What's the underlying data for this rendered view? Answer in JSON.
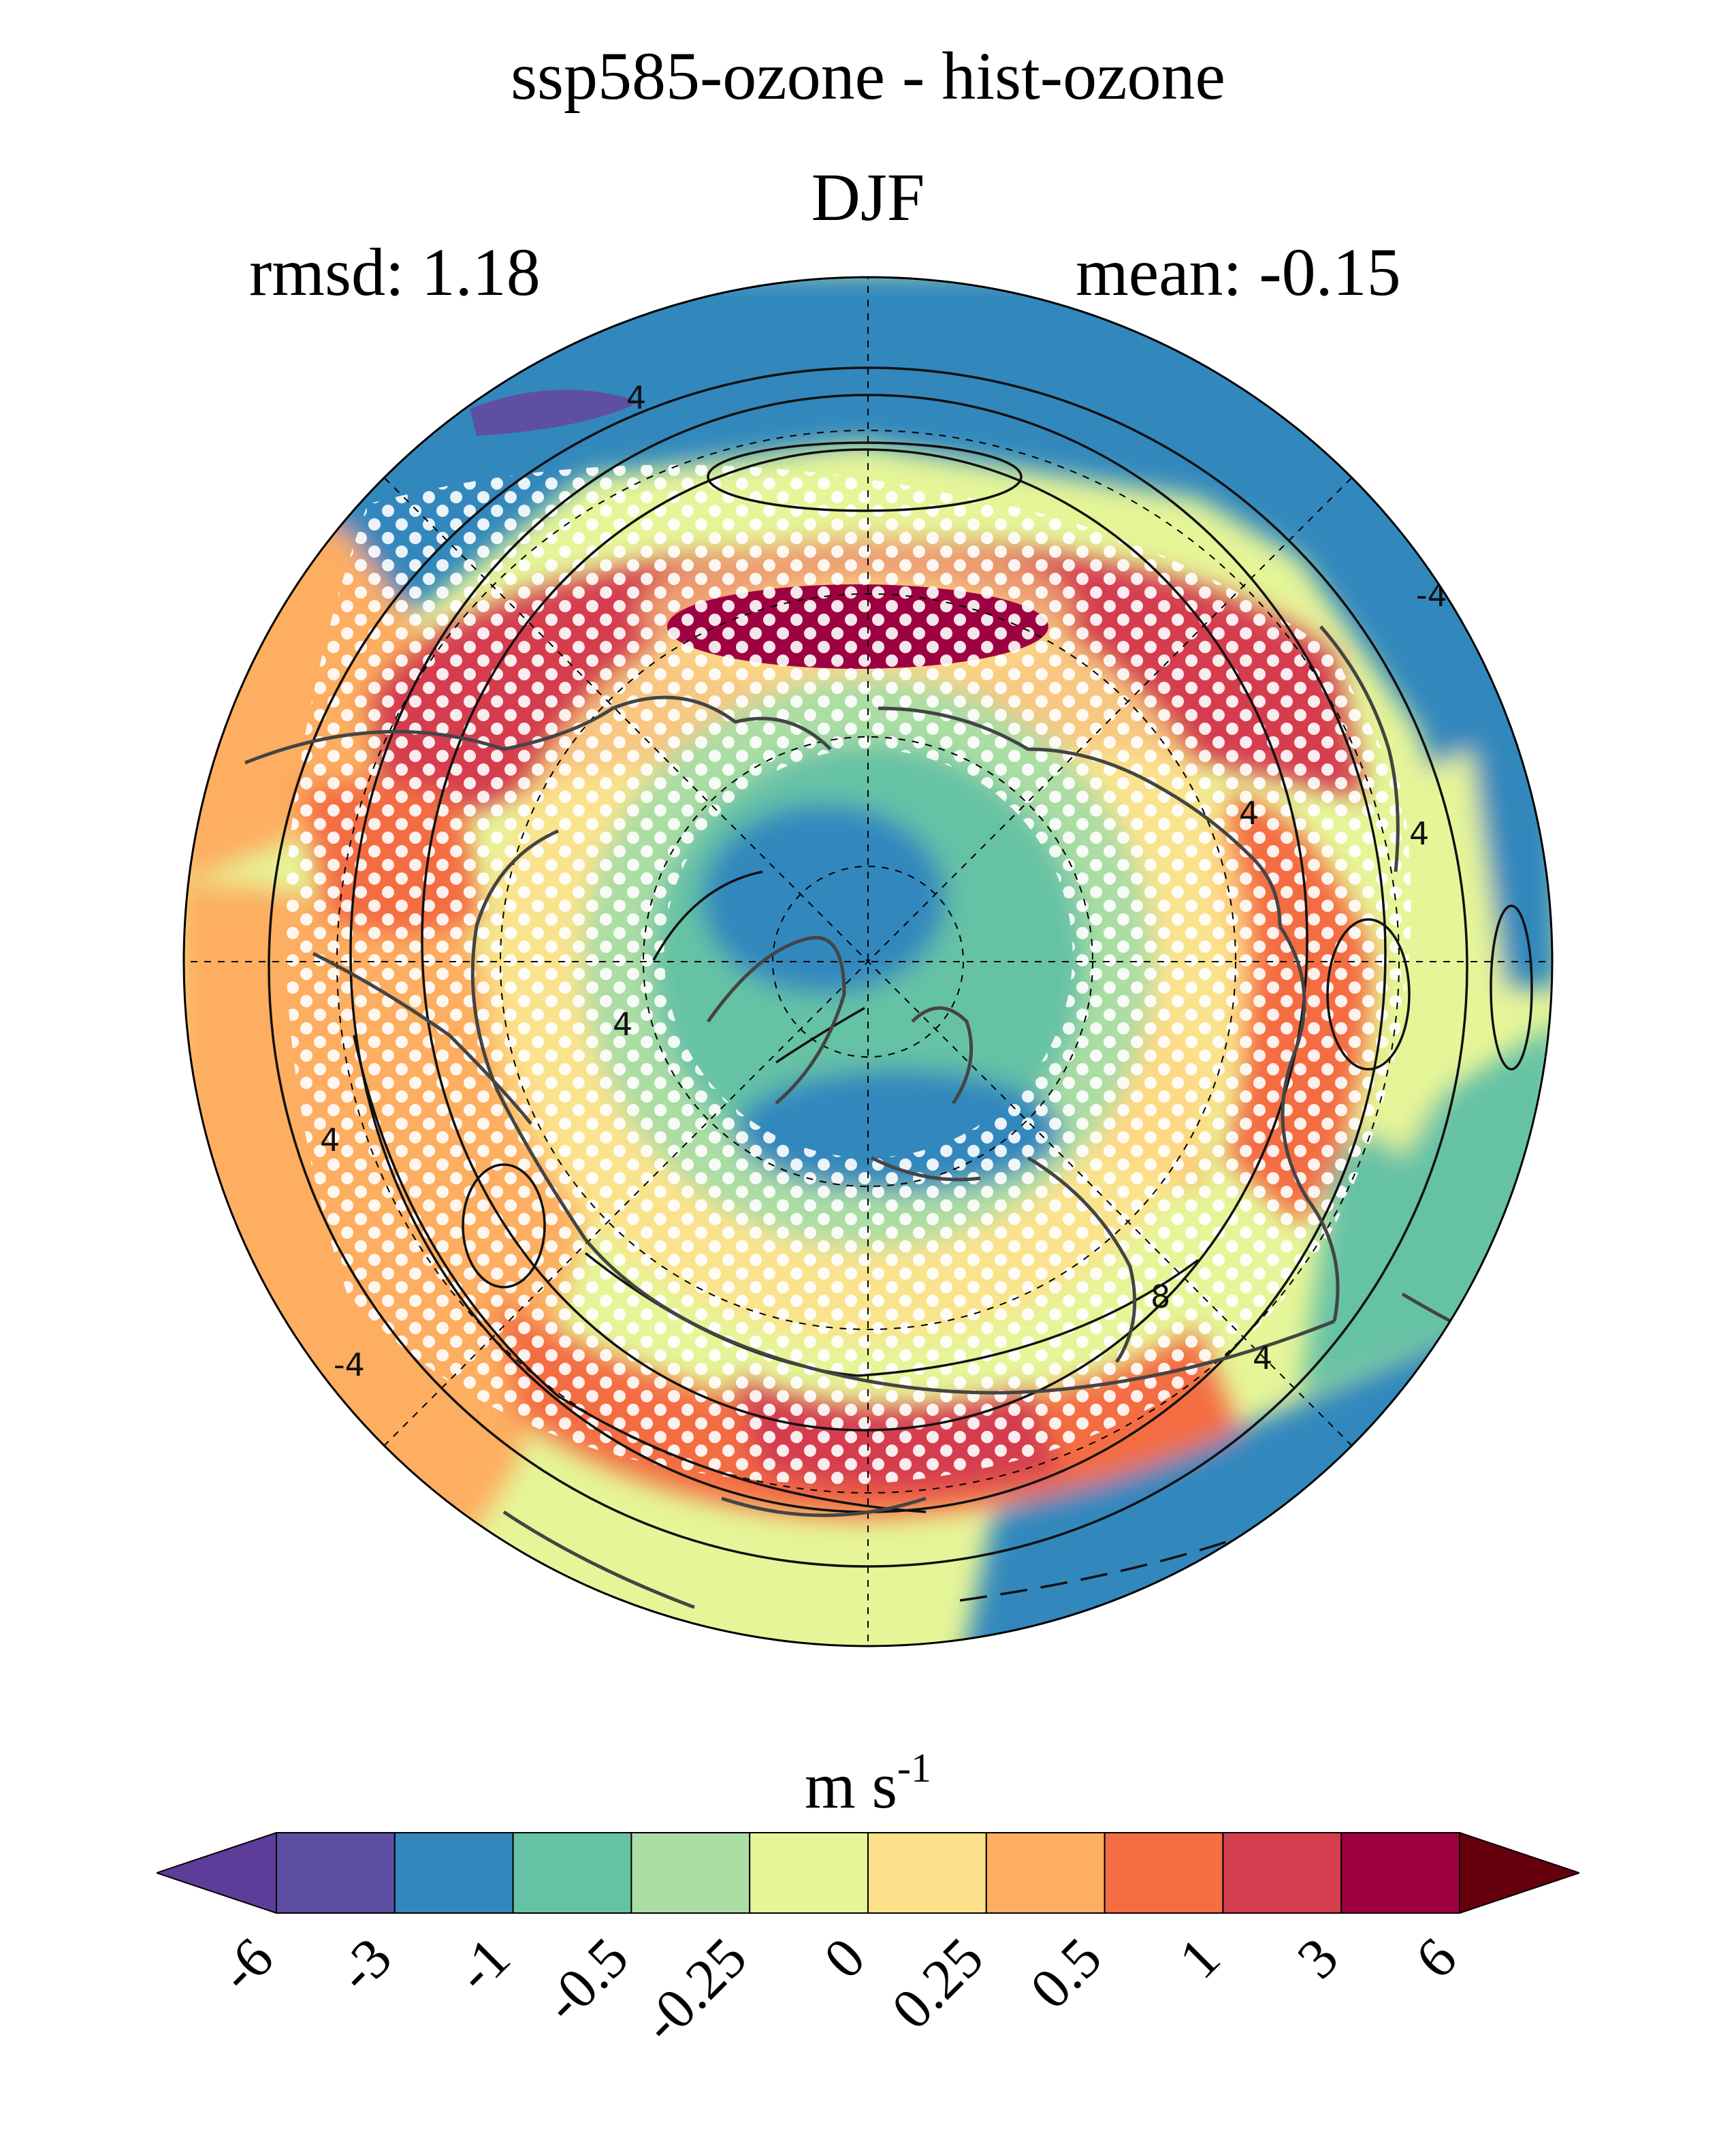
{
  "title": "ssp585-ozone - hist-ozone",
  "season": "DJF",
  "stats": {
    "rmsd": "rmsd: 1.18",
    "mean": "mean: -0.15"
  },
  "units": {
    "base": "m s",
    "exp": "-1"
  },
  "contour_labels": [
    "4",
    "4",
    "4",
    "4",
    "4",
    "-4",
    "8",
    "4",
    "-4"
  ],
  "colorbar": {
    "levels": [
      "-6",
      "-3",
      "-1",
      "-0.5",
      "-0.25",
      "0",
      "0.25",
      "0.5",
      "1",
      "3",
      "6"
    ],
    "colors": [
      "#5e3c99",
      "#5e4fa2",
      "#3288bd",
      "#66c2a5",
      "#abdda4",
      "#e6f598",
      "#fee08b",
      "#fdae61",
      "#f46d43",
      "#d53e4f",
      "#9e0142",
      "#67000d"
    ]
  },
  "palette": {
    "ocean_blue": "#3288bd",
    "teal": "#66c2a5",
    "light_green": "#abdda4",
    "yellow_green": "#e6f598",
    "light_orange": "#fee08b",
    "orange": "#fdae61",
    "dark_orange": "#f46d43",
    "red": "#d53e4f",
    "dark_red": "#9e0142",
    "purple": "#5e4fa2"
  }
}
